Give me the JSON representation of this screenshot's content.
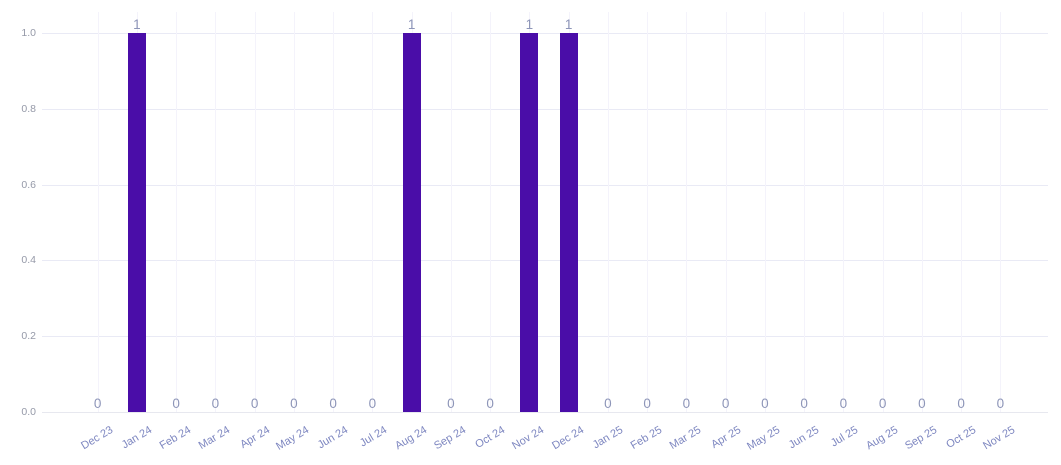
{
  "chart_data": {
    "type": "bar",
    "title": "",
    "xlabel": "",
    "ylabel": "",
    "categories": [
      "Dec 23",
      "Jan 24",
      "Feb 24",
      "Mar 24",
      "Apr 24",
      "May 24",
      "Jun 24",
      "Jul 24",
      "Aug 24",
      "Sep 24",
      "Oct 24",
      "Nov 24",
      "Dec 24",
      "Jan 25",
      "Feb 25",
      "Mar 25",
      "Apr 25",
      "May 25",
      "Jun 25",
      "Jul 25",
      "Aug 25",
      "Sep 25",
      "Oct 25",
      "Nov 25"
    ],
    "values": [
      0,
      1,
      0,
      0,
      0,
      0,
      0,
      0,
      1,
      0,
      0,
      1,
      1,
      0,
      0,
      0,
      0,
      0,
      0,
      0,
      0,
      0,
      0,
      0
    ],
    "ylim": [
      0,
      1
    ],
    "yticks": [
      "0.0",
      "0.2",
      "0.4",
      "0.6",
      "0.8",
      "1.0"
    ],
    "grid": true,
    "legend_shown": false,
    "value_labels_shown": true,
    "x_label_rotation_deg": -31,
    "colors": {
      "bar": "#4a0da8",
      "value_label": "#8d95b8",
      "x_tick_label": "#7d86c0",
      "y_tick_label": "#9599a8",
      "h_gridline": "#e9eaf5",
      "v_gridline": "#f4f3fb",
      "axis_line": "#e7e8ef",
      "background": "#ffffff"
    }
  }
}
